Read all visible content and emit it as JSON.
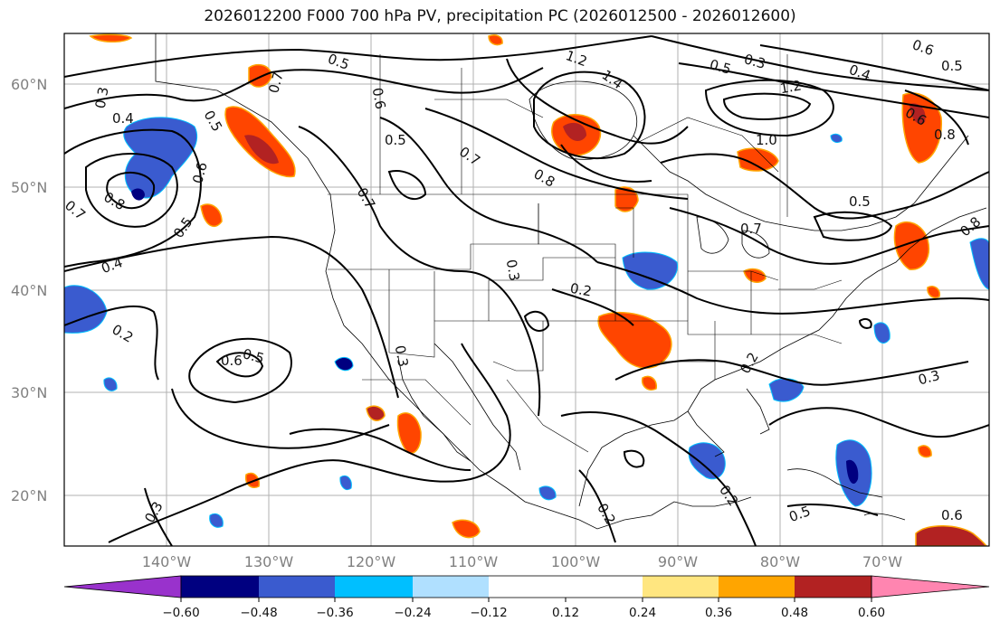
{
  "title": "2026012200 F000 700 hPa PV, precipitation PC (2026012500 - 2026012600)",
  "lat_ticks": [
    "60°N",
    "50°N",
    "40°N",
    "30°N",
    "20°N"
  ],
  "lon_ticks": [
    "140°W",
    "130°W",
    "120°W",
    "110°W",
    "100°W",
    "90°W",
    "80°W",
    "70°W"
  ],
  "colorbar": {
    "ticks": [
      "−0.60",
      "−0.48",
      "−0.36",
      "−0.24",
      "−0.12",
      "0.12",
      "0.24",
      "0.36",
      "0.48",
      "0.60"
    ],
    "colors": [
      "#000080",
      "#3a5bcf",
      "#00bfff",
      "#b0e0ff",
      "#ffffff",
      "#ffe680",
      "#ffa500",
      "#ff4500",
      "#b22222"
    ],
    "under_color": "#9932cc",
    "over_color": "#ff85b0"
  },
  "contour_labels": [
    "0.3",
    "0.4",
    "0.5",
    "0.6",
    "0.7",
    "0.8",
    "0.5",
    "0.5",
    "0.6",
    "0.7",
    "0.5",
    "0.7",
    "0.8",
    "1.2",
    "1.4",
    "1.0",
    "1.2",
    "0.5",
    "0.3",
    "0.4",
    "0.5",
    "0.6",
    "0.8",
    "0.6",
    "0.7",
    "0.8",
    "0.4",
    "0.5",
    "0.7",
    "0.3",
    "0.2",
    "0.2",
    "0.6",
    "0.5",
    "0.3",
    "0.2",
    "0.3",
    "0.3",
    "0.2",
    "0.2",
    "0.5",
    "0.6"
  ]
}
